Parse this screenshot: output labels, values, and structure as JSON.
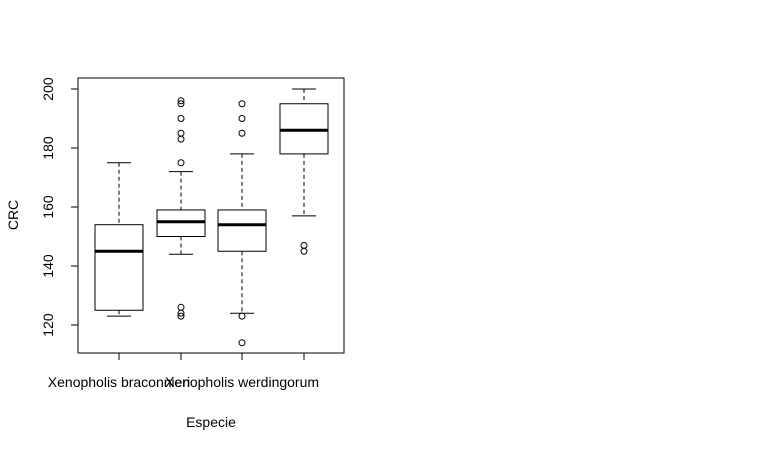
{
  "chart_data": {
    "type": "boxplot",
    "xlabel": "Especie",
    "ylabel": "CRC",
    "ylim": [
      110,
      203
    ],
    "yticks": [
      120,
      140,
      160,
      180,
      200
    ],
    "x_tick_labels": [
      "Xenopholis braconnieri",
      "",
      "Xenopholis werdingorum",
      ""
    ],
    "boxes": [
      {
        "whisker_low": 123,
        "q1": 125,
        "median": 145,
        "q3": 154,
        "whisker_high": 175,
        "outliers": []
      },
      {
        "whisker_low": 144,
        "q1": 150,
        "median": 155,
        "q3": 159,
        "whisker_high": 172,
        "outliers": [
          123,
          124,
          126,
          175,
          183,
          185,
          190,
          195,
          196
        ]
      },
      {
        "whisker_low": 124,
        "q1": 145,
        "median": 154,
        "q3": 159,
        "whisker_high": 178,
        "outliers": [
          114,
          123,
          185,
          190,
          195
        ]
      },
      {
        "whisker_low": 157,
        "q1": 178,
        "median": 186,
        "q3": 195,
        "whisker_high": 200,
        "outliers": [
          145,
          147
        ]
      }
    ],
    "grid": false,
    "legend": "none",
    "colors": {
      "box_fill": "#ffffff",
      "stroke": "#000000"
    }
  }
}
